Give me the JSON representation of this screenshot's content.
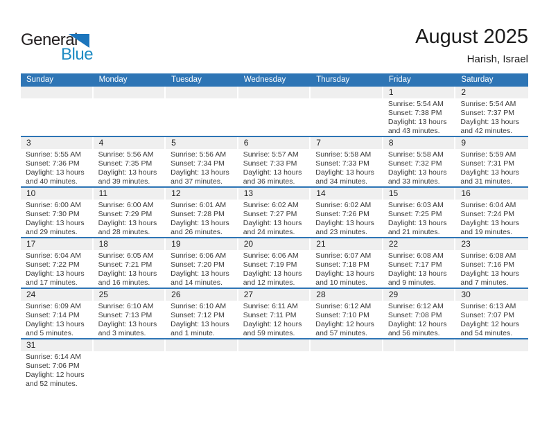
{
  "logo": {
    "text_black": "General",
    "text_blue": "Blue"
  },
  "header": {
    "title": "August 2025",
    "location": "Harish, Israel"
  },
  "colors": {
    "header_bar_blue": "#2e75b5",
    "row_separator_blue": "#2e75b5",
    "day_band_gray": "#efefef",
    "logo_triangle_blue": "#1c75bc",
    "logo_text_blue": "#1e8bc3",
    "body_text": "#3a3a3a"
  },
  "weekdays": [
    "Sunday",
    "Monday",
    "Tuesday",
    "Wednesday",
    "Thursday",
    "Friday",
    "Saturday"
  ],
  "weeks": [
    [
      null,
      null,
      null,
      null,
      null,
      {
        "day": "1",
        "sunrise": "Sunrise: 5:54 AM",
        "sunset": "Sunset: 7:38 PM",
        "daylight1": "Daylight: 13 hours",
        "daylight2": "and 43 minutes."
      },
      {
        "day": "2",
        "sunrise": "Sunrise: 5:54 AM",
        "sunset": "Sunset: 7:37 PM",
        "daylight1": "Daylight: 13 hours",
        "daylight2": "and 42 minutes."
      }
    ],
    [
      {
        "day": "3",
        "sunrise": "Sunrise: 5:55 AM",
        "sunset": "Sunset: 7:36 PM",
        "daylight1": "Daylight: 13 hours",
        "daylight2": "and 40 minutes."
      },
      {
        "day": "4",
        "sunrise": "Sunrise: 5:56 AM",
        "sunset": "Sunset: 7:35 PM",
        "daylight1": "Daylight: 13 hours",
        "daylight2": "and 39 minutes."
      },
      {
        "day": "5",
        "sunrise": "Sunrise: 5:56 AM",
        "sunset": "Sunset: 7:34 PM",
        "daylight1": "Daylight: 13 hours",
        "daylight2": "and 37 minutes."
      },
      {
        "day": "6",
        "sunrise": "Sunrise: 5:57 AM",
        "sunset": "Sunset: 7:33 PM",
        "daylight1": "Daylight: 13 hours",
        "daylight2": "and 36 minutes."
      },
      {
        "day": "7",
        "sunrise": "Sunrise: 5:58 AM",
        "sunset": "Sunset: 7:33 PM",
        "daylight1": "Daylight: 13 hours",
        "daylight2": "and 34 minutes."
      },
      {
        "day": "8",
        "sunrise": "Sunrise: 5:58 AM",
        "sunset": "Sunset: 7:32 PM",
        "daylight1": "Daylight: 13 hours",
        "daylight2": "and 33 minutes."
      },
      {
        "day": "9",
        "sunrise": "Sunrise: 5:59 AM",
        "sunset": "Sunset: 7:31 PM",
        "daylight1": "Daylight: 13 hours",
        "daylight2": "and 31 minutes."
      }
    ],
    [
      {
        "day": "10",
        "sunrise": "Sunrise: 6:00 AM",
        "sunset": "Sunset: 7:30 PM",
        "daylight1": "Daylight: 13 hours",
        "daylight2": "and 29 minutes."
      },
      {
        "day": "11",
        "sunrise": "Sunrise: 6:00 AM",
        "sunset": "Sunset: 7:29 PM",
        "daylight1": "Daylight: 13 hours",
        "daylight2": "and 28 minutes."
      },
      {
        "day": "12",
        "sunrise": "Sunrise: 6:01 AM",
        "sunset": "Sunset: 7:28 PM",
        "daylight1": "Daylight: 13 hours",
        "daylight2": "and 26 minutes."
      },
      {
        "day": "13",
        "sunrise": "Sunrise: 6:02 AM",
        "sunset": "Sunset: 7:27 PM",
        "daylight1": "Daylight: 13 hours",
        "daylight2": "and 24 minutes."
      },
      {
        "day": "14",
        "sunrise": "Sunrise: 6:02 AM",
        "sunset": "Sunset: 7:26 PM",
        "daylight1": "Daylight: 13 hours",
        "daylight2": "and 23 minutes."
      },
      {
        "day": "15",
        "sunrise": "Sunrise: 6:03 AM",
        "sunset": "Sunset: 7:25 PM",
        "daylight1": "Daylight: 13 hours",
        "daylight2": "and 21 minutes."
      },
      {
        "day": "16",
        "sunrise": "Sunrise: 6:04 AM",
        "sunset": "Sunset: 7:24 PM",
        "daylight1": "Daylight: 13 hours",
        "daylight2": "and 19 minutes."
      }
    ],
    [
      {
        "day": "17",
        "sunrise": "Sunrise: 6:04 AM",
        "sunset": "Sunset: 7:22 PM",
        "daylight1": "Daylight: 13 hours",
        "daylight2": "and 17 minutes."
      },
      {
        "day": "18",
        "sunrise": "Sunrise: 6:05 AM",
        "sunset": "Sunset: 7:21 PM",
        "daylight1": "Daylight: 13 hours",
        "daylight2": "and 16 minutes."
      },
      {
        "day": "19",
        "sunrise": "Sunrise: 6:06 AM",
        "sunset": "Sunset: 7:20 PM",
        "daylight1": "Daylight: 13 hours",
        "daylight2": "and 14 minutes."
      },
      {
        "day": "20",
        "sunrise": "Sunrise: 6:06 AM",
        "sunset": "Sunset: 7:19 PM",
        "daylight1": "Daylight: 13 hours",
        "daylight2": "and 12 minutes."
      },
      {
        "day": "21",
        "sunrise": "Sunrise: 6:07 AM",
        "sunset": "Sunset: 7:18 PM",
        "daylight1": "Daylight: 13 hours",
        "daylight2": "and 10 minutes."
      },
      {
        "day": "22",
        "sunrise": "Sunrise: 6:08 AM",
        "sunset": "Sunset: 7:17 PM",
        "daylight1": "Daylight: 13 hours",
        "daylight2": "and 9 minutes."
      },
      {
        "day": "23",
        "sunrise": "Sunrise: 6:08 AM",
        "sunset": "Sunset: 7:16 PM",
        "daylight1": "Daylight: 13 hours",
        "daylight2": "and 7 minutes."
      }
    ],
    [
      {
        "day": "24",
        "sunrise": "Sunrise: 6:09 AM",
        "sunset": "Sunset: 7:14 PM",
        "daylight1": "Daylight: 13 hours",
        "daylight2": "and 5 minutes."
      },
      {
        "day": "25",
        "sunrise": "Sunrise: 6:10 AM",
        "sunset": "Sunset: 7:13 PM",
        "daylight1": "Daylight: 13 hours",
        "daylight2": "and 3 minutes."
      },
      {
        "day": "26",
        "sunrise": "Sunrise: 6:10 AM",
        "sunset": "Sunset: 7:12 PM",
        "daylight1": "Daylight: 13 hours",
        "daylight2": "and 1 minute."
      },
      {
        "day": "27",
        "sunrise": "Sunrise: 6:11 AM",
        "sunset": "Sunset: 7:11 PM",
        "daylight1": "Daylight: 12 hours",
        "daylight2": "and 59 minutes."
      },
      {
        "day": "28",
        "sunrise": "Sunrise: 6:12 AM",
        "sunset": "Sunset: 7:10 PM",
        "daylight1": "Daylight: 12 hours",
        "daylight2": "and 57 minutes."
      },
      {
        "day": "29",
        "sunrise": "Sunrise: 6:12 AM",
        "sunset": "Sunset: 7:08 PM",
        "daylight1": "Daylight: 12 hours",
        "daylight2": "and 56 minutes."
      },
      {
        "day": "30",
        "sunrise": "Sunrise: 6:13 AM",
        "sunset": "Sunset: 7:07 PM",
        "daylight1": "Daylight: 12 hours",
        "daylight2": "and 54 minutes."
      }
    ],
    [
      {
        "day": "31",
        "sunrise": "Sunrise: 6:14 AM",
        "sunset": "Sunset: 7:06 PM",
        "daylight1": "Daylight: 12 hours",
        "daylight2": "and 52 minutes."
      },
      null,
      null,
      null,
      null,
      null,
      null
    ]
  ]
}
